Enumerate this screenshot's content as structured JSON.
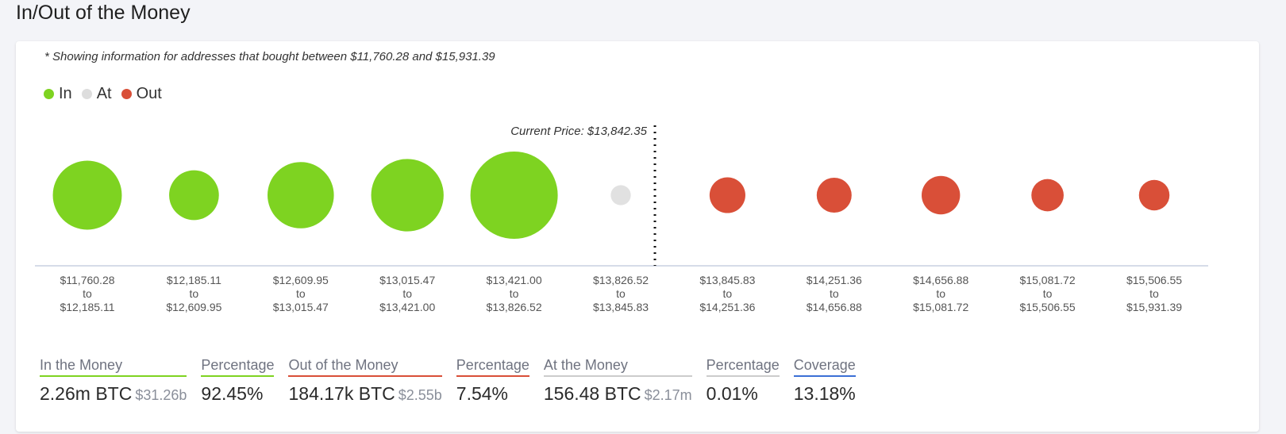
{
  "page_title": "In/Out of the Money",
  "note": "* Showing information for addresses that bought between $11,760.28 and $15,931.39",
  "legend": [
    {
      "label": "In",
      "color": "#7ed321"
    },
    {
      "label": "At",
      "color": "#dddddd"
    },
    {
      "label": "Out",
      "color": "#d94f38"
    }
  ],
  "chart_data": {
    "type": "scatter",
    "current_price_label": "Current Price: $13,842.35",
    "current_price_after_bucket_index": 5,
    "buckets": [
      {
        "from": "$11,760.28",
        "to": "$12,185.11",
        "status": "in",
        "size": 0.79
      },
      {
        "from": "$12,185.11",
        "to": "$12,609.95",
        "status": "in",
        "size": 0.57
      },
      {
        "from": "$12,609.95",
        "to": "$13,015.47",
        "status": "in",
        "size": 0.76
      },
      {
        "from": "$13,015.47",
        "to": "$13,421.00",
        "status": "in",
        "size": 0.83
      },
      {
        "from": "$13,421.00",
        "to": "$13,826.52",
        "status": "in",
        "size": 1.0
      },
      {
        "from": "$13,826.52",
        "to": "$13,845.83",
        "status": "at",
        "size": 0.23
      },
      {
        "from": "$13,845.83",
        "to": "$14,251.36",
        "status": "out",
        "size": 0.41
      },
      {
        "from": "$14,251.36",
        "to": "$14,656.88",
        "status": "out",
        "size": 0.4
      },
      {
        "from": "$14,656.88",
        "to": "$15,081.72",
        "status": "out",
        "size": 0.44
      },
      {
        "from": "$15,081.72",
        "to": "$15,506.55",
        "status": "out",
        "size": 0.37
      },
      {
        "from": "$15,506.55",
        "to": "$15,931.39",
        "status": "out",
        "size": 0.35
      }
    ],
    "connector": "to",
    "colors": {
      "in": "#7ed321",
      "at": "#e1e1e1",
      "out": "#d94f38"
    }
  },
  "stats": [
    {
      "label": "In the Money",
      "value": "2.26m BTC",
      "sub": "$31.26b",
      "color": "#7ed321"
    },
    {
      "label": "Percentage",
      "value": "92.45%",
      "sub": "",
      "color": "#7ed321"
    },
    {
      "label": "Out of the Money",
      "value": "184.17k BTC",
      "sub": "$2.55b",
      "color": "#d94f38"
    },
    {
      "label": "Percentage",
      "value": "7.54%",
      "sub": "",
      "color": "#d94f38"
    },
    {
      "label": "At the Money",
      "value": "156.48 BTC",
      "sub": "$2.17m",
      "color": "#cccccc"
    },
    {
      "label": "Percentage",
      "value": "0.01%",
      "sub": "",
      "color": "#cccccc"
    },
    {
      "label": "Coverage",
      "value": "13.18%",
      "sub": "",
      "color": "#3b6fd6"
    }
  ]
}
